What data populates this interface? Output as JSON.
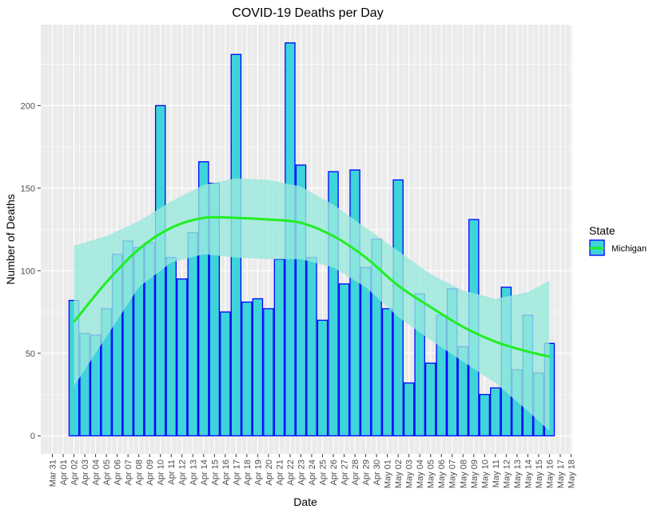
{
  "chart_data": {
    "type": "bar",
    "title": "COVID-19 Deaths per Day",
    "xlabel": "Date",
    "ylabel": "Number of Deaths",
    "ylim": [
      -11,
      249
    ],
    "y_ticks": [
      0,
      50,
      100,
      150,
      200
    ],
    "grid": true,
    "x_tick_labels": [
      "Mar 31",
      "Apr 01",
      "Apr 02",
      "Apr 03",
      "Apr 04",
      "Apr 05",
      "Apr 06",
      "Apr 07",
      "Apr 08",
      "Apr 09",
      "Apr 10",
      "Apr 11",
      "Apr 12",
      "Apr 13",
      "Apr 14",
      "Apr 15",
      "Apr 16",
      "Apr 17",
      "Apr 18",
      "Apr 19",
      "Apr 20",
      "Apr 21",
      "Apr 22",
      "Apr 23",
      "Apr 24",
      "Apr 25",
      "Apr 26",
      "Apr 27",
      "Apr 28",
      "Apr 29",
      "Apr 30",
      "May 01",
      "May 02",
      "May 03",
      "May 04",
      "May 05",
      "May 06",
      "May 07",
      "May 08",
      "May 09",
      "May 10",
      "May 11",
      "May 12",
      "May 13",
      "May 14",
      "May 15",
      "May 16",
      "May 17",
      "May 18"
    ],
    "categories": [
      "Apr 02",
      "Apr 03",
      "Apr 04",
      "Apr 05",
      "Apr 06",
      "Apr 07",
      "Apr 08",
      "Apr 09",
      "Apr 10",
      "Apr 11",
      "Apr 12",
      "Apr 13",
      "Apr 14",
      "Apr 15",
      "Apr 16",
      "Apr 17",
      "Apr 18",
      "Apr 19",
      "Apr 20",
      "Apr 21",
      "Apr 22",
      "Apr 23",
      "Apr 24",
      "Apr 25",
      "Apr 26",
      "Apr 27",
      "Apr 28",
      "Apr 29",
      "Apr 30",
      "May 01",
      "May 02",
      "May 03",
      "May 04",
      "May 05",
      "May 06",
      "May 07",
      "May 08",
      "May 09",
      "May 10",
      "May 11",
      "May 12",
      "May 13",
      "May 14",
      "May 15",
      "May 16"
    ],
    "series": [
      {
        "name": "Michigan",
        "values": [
          82,
          62,
          61,
          77,
          110,
          118,
          114,
          117,
          200,
          108,
          95,
          123,
          166,
          153,
          75,
          231,
          81,
          83,
          77,
          107,
          238,
          164,
          108,
          70,
          160,
          92,
          161,
          102,
          119,
          77,
          155,
          32,
          86,
          44,
          73,
          89,
          54,
          131,
          25,
          29,
          90,
          40,
          73,
          38,
          56
        ]
      }
    ],
    "smooth": {
      "x": [
        "Apr 02",
        "Apr 05",
        "Apr 08",
        "Apr 11",
        "Apr 14",
        "Apr 17",
        "Apr 20",
        "Apr 23",
        "Apr 26",
        "Apr 29",
        "May 02",
        "May 05",
        "May 08",
        "May 11",
        "May 14",
        "May 16"
      ],
      "fit": [
        69,
        93,
        113,
        126,
        132,
        132,
        131,
        129,
        121,
        108,
        91,
        78,
        66,
        57,
        51,
        48
      ],
      "upper": [
        115,
        121,
        130,
        142,
        152,
        156,
        155,
        151,
        140,
        126,
        112,
        98,
        88,
        83,
        87,
        94
      ],
      "lower": [
        30,
        60,
        90,
        105,
        110,
        108,
        107,
        107,
        102,
        90,
        72,
        58,
        45,
        32,
        15,
        3
      ]
    },
    "legend": {
      "title": "State",
      "label": "Michigan",
      "position": "right"
    },
    "colors": {
      "bar_fill": "#3ed4d9",
      "bar_stroke": "#0000ff",
      "smooth_line": "#22ee22",
      "ribbon": "#99e8dc",
      "panel_bg": "#ebebeb",
      "grid": "#ffffff"
    }
  }
}
